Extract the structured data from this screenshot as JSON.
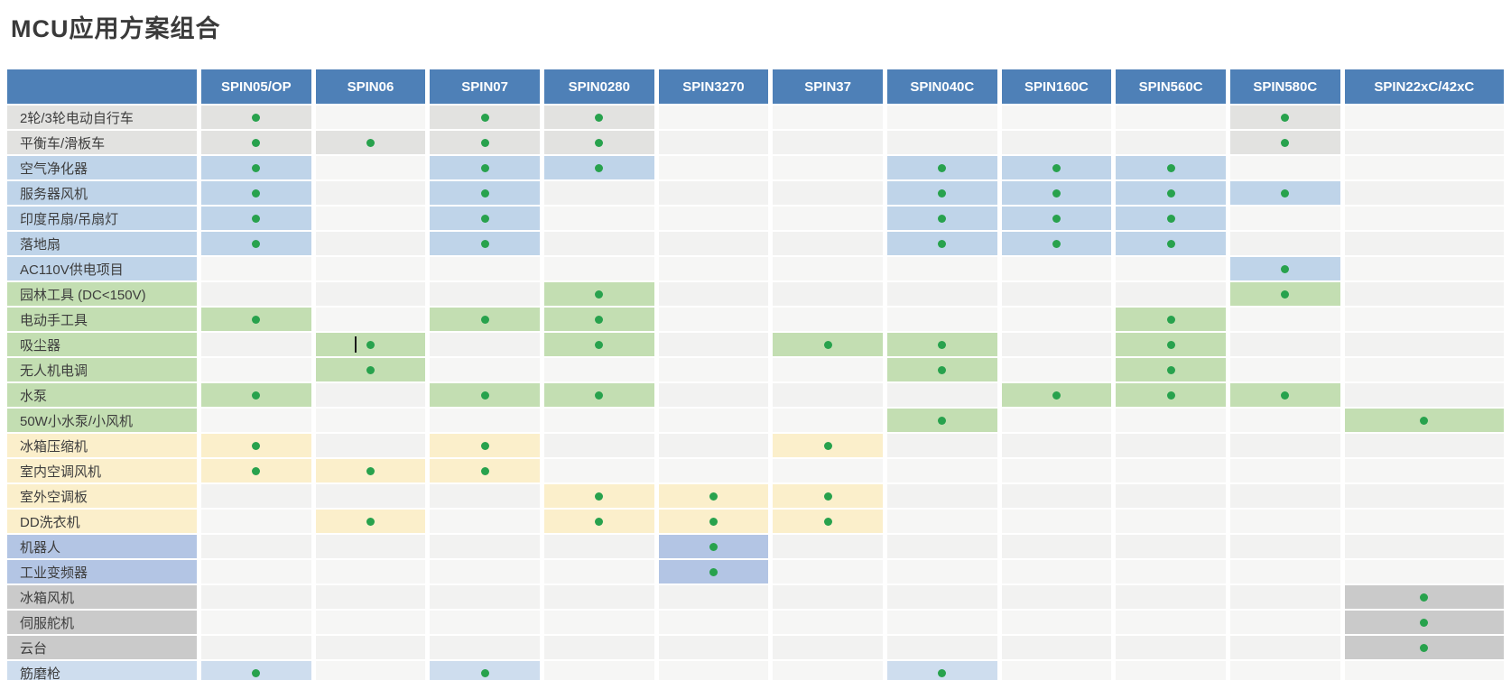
{
  "title": "MCU应用方案组合",
  "colors": {
    "header_bg": "#4E80B7",
    "header_text": "#FFFFFF",
    "dot": "#28A24D",
    "empty_cell_odd": "#F2F2F1",
    "empty_cell_even": "#F6F6F5",
    "groups": {
      "gray": "#E2E2E0",
      "blue": "#BFD4E9",
      "green": "#C3DEB2",
      "yellow": "#FBEFCB",
      "periwinkle": "#B3C5E4",
      "dark_gray": "#CACACA",
      "light_blue": "#CEDDEE"
    }
  },
  "table": {
    "columns": [
      "SPIN05/OP",
      "SPIN06",
      "SPIN07",
      "SPIN0280",
      "SPIN3270",
      "SPIN37",
      "SPIN040C",
      "SPIN160C",
      "SPIN560C",
      "SPIN580C",
      "SPIN22xC/42xC"
    ],
    "rows": [
      {
        "label": "2轮/3轮电动自行车",
        "group": "gray",
        "dots": [
          0,
          2,
          3,
          9
        ]
      },
      {
        "label": "平衡车/滑板车",
        "group": "gray",
        "dots": [
          0,
          1,
          2,
          3,
          9
        ]
      },
      {
        "label": "空气净化器",
        "group": "blue",
        "dots": [
          0,
          2,
          3,
          6,
          7,
          8
        ]
      },
      {
        "label": "服务器风机",
        "group": "blue",
        "dots": [
          0,
          2,
          6,
          7,
          8,
          9
        ]
      },
      {
        "label": "印度吊扇/吊扇灯",
        "group": "blue",
        "dots": [
          0,
          2,
          6,
          7,
          8
        ]
      },
      {
        "label": "落地扇",
        "group": "blue",
        "dots": [
          0,
          2,
          6,
          7,
          8
        ]
      },
      {
        "label": "AC110V供电项目",
        "group": "blue",
        "dots": [
          9
        ]
      },
      {
        "label": "园林工具 (DC<150V)",
        "group": "green",
        "dots": [
          3,
          9
        ]
      },
      {
        "label": "电动手工具",
        "group": "green",
        "dots": [
          0,
          2,
          3,
          8
        ]
      },
      {
        "label": "吸尘器",
        "group": "green",
        "dots": [
          1,
          3,
          5,
          6,
          8
        ],
        "cursor_artifact_col": 1
      },
      {
        "label": "无人机电调",
        "group": "green",
        "dots": [
          1,
          6,
          8
        ]
      },
      {
        "label": "水泵",
        "group": "green",
        "dots": [
          0,
          2,
          3,
          7,
          8,
          9
        ]
      },
      {
        "label": "50W小水泵/小风机",
        "group": "green",
        "dots": [
          6,
          10
        ]
      },
      {
        "label": "冰箱压缩机",
        "group": "yellow",
        "dots": [
          0,
          2,
          5
        ]
      },
      {
        "label": "室内空调风机",
        "group": "yellow",
        "dots": [
          0,
          1,
          2
        ]
      },
      {
        "label": "室外空调板",
        "group": "yellow",
        "dots": [
          3,
          4,
          5
        ]
      },
      {
        "label": "DD洗衣机",
        "group": "yellow",
        "dots": [
          1,
          3,
          4,
          5
        ]
      },
      {
        "label": "机器人",
        "group": "periwinkle",
        "dots": [
          4
        ]
      },
      {
        "label": "工业变频器",
        "group": "periwinkle",
        "dots": [
          4
        ]
      },
      {
        "label": "冰箱风机",
        "group": "dark_gray",
        "dots": [
          10
        ]
      },
      {
        "label": "伺服舵机",
        "group": "dark_gray",
        "dots": [
          10
        ]
      },
      {
        "label": "云台",
        "group": "dark_gray",
        "dots": [
          10
        ]
      },
      {
        "label": "筋磨枪",
        "group": "light_blue",
        "dots": [
          0,
          2,
          6
        ]
      }
    ]
  }
}
